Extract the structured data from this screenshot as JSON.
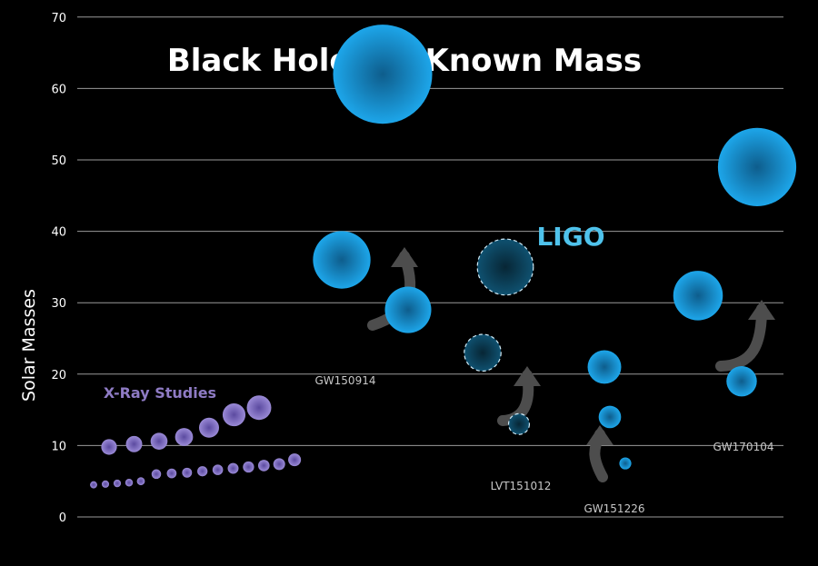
{
  "chart_data": {
    "type": "scatter",
    "title": "Black Holes of Known Mass",
    "ylabel": "Solar Masses",
    "ylim": [
      0,
      70
    ],
    "y_ticks": [
      0,
      10,
      20,
      30,
      40,
      50,
      60,
      70
    ],
    "grid": true,
    "annotations": {
      "ligo": "LIGO",
      "xray": "X-Ray Studies"
    },
    "colors": {
      "ligo_text": "#4fc3ec",
      "xray_text": "#8e7bc4",
      "ligo_fill": "#1a9ee0",
      "ligo_dark": "#0d4a66",
      "xray_fill": "#8f7fd0",
      "arrow": "#4d4d4d"
    },
    "xray_studies": {
      "name": "X-Ray Studies",
      "masses": [
        4.5,
        4.6,
        4.7,
        4.8,
        5.0,
        6.0,
        6.1,
        6.2,
        6.4,
        6.6,
        6.8,
        7.0,
        7.2,
        7.4,
        8.0,
        9.8,
        10.2,
        10.6,
        11.2,
        12.5,
        14.3,
        15.3
      ]
    },
    "ligo_events": [
      {
        "name": "GW150914",
        "primary": 36,
        "secondary": 29,
        "final": 62,
        "confidence": "confirmed"
      },
      {
        "name": "LVT151012",
        "primary": 23,
        "secondary": 13,
        "final": 35,
        "confidence": "candidate"
      },
      {
        "name": "GW151226",
        "primary": 14,
        "secondary": 7.5,
        "final": 21,
        "confidence": "confirmed"
      },
      {
        "name": "GW170104",
        "primary": 31,
        "secondary": 19,
        "final": 49,
        "confidence": "confirmed"
      }
    ]
  }
}
